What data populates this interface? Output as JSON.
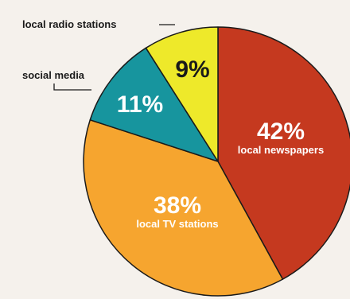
{
  "chart_data": {
    "type": "pie",
    "title": "",
    "slices": [
      {
        "label": "local newspapers",
        "value": 42,
        "display": "42%",
        "color": "#c5391f",
        "label_color": "#ffffff",
        "text_color": "#ffffff",
        "label_style": "inside"
      },
      {
        "label": "local TV stations",
        "value": 38,
        "display": "38%",
        "color": "#f6a52f",
        "label_color": "#ffffff",
        "text_color": "#ffffff",
        "label_style": "inside"
      },
      {
        "label": "social media",
        "value": 11,
        "display": "11%",
        "color": "#17959e",
        "label_color": "#1a1a1a",
        "text_color": "#ffffff",
        "label_style": "callout"
      },
      {
        "label": "local radio stations",
        "value": 9,
        "display": "9%",
        "color": "#eee92a",
        "label_color": "#1a1a1a",
        "text_color": "#1a1a1a",
        "label_style": "callout"
      }
    ],
    "start": "top, clockwise",
    "legend": "none"
  }
}
